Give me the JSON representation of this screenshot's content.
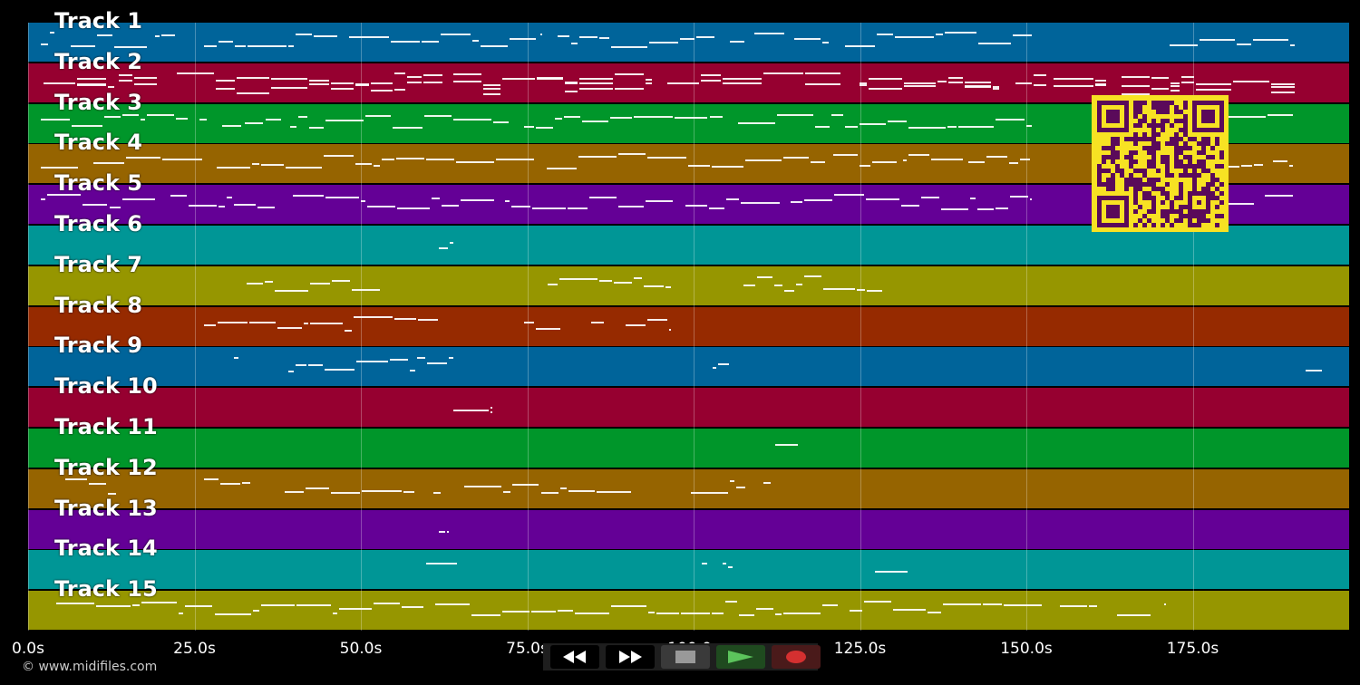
{
  "tracks": [
    {
      "label": "Track 1",
      "color": "#00649a"
    },
    {
      "label": "Track 2",
      "color": "#960030"
    },
    {
      "label": "Track 3",
      "color": "#00962a"
    },
    {
      "label": "Track 4",
      "color": "#966400"
    },
    {
      "label": "Track 5",
      "color": "#640096"
    },
    {
      "label": "Track 6",
      "color": "#009696"
    },
    {
      "label": "Track 7",
      "color": "#969600"
    },
    {
      "label": "Track 8",
      "color": "#962a00"
    },
    {
      "label": "Track 9",
      "color": "#00649a"
    },
    {
      "label": "Track 10",
      "color": "#960030"
    },
    {
      "label": "Track 11",
      "color": "#00962a"
    },
    {
      "label": "Track 12",
      "color": "#966400"
    },
    {
      "label": "Track 13",
      "color": "#640096"
    },
    {
      "label": "Track 14",
      "color": "#009696"
    },
    {
      "label": "Track 15",
      "color": "#969600"
    }
  ],
  "timeline": {
    "start_seconds": 0,
    "end_seconds": 198.5,
    "ticks": [
      {
        "seconds": 0,
        "label": "0.0s"
      },
      {
        "seconds": 25,
        "label": "25.0s"
      },
      {
        "seconds": 50,
        "label": "50.0s"
      },
      {
        "seconds": 75,
        "label": "75.0s"
      },
      {
        "seconds": 100,
        "label": "100.0s"
      },
      {
        "seconds": 125,
        "label": "125.0s"
      },
      {
        "seconds": 150,
        "label": "150.0s"
      },
      {
        "seconds": 175,
        "label": "175.0s"
      }
    ]
  },
  "transport": {
    "buttons": [
      {
        "name": "rewind-button",
        "icon": "rewind-icon"
      },
      {
        "name": "fast-forward-button",
        "icon": "fast-forward-icon"
      },
      {
        "name": "stop-button",
        "icon": "stop-icon"
      },
      {
        "name": "play-button",
        "icon": "play-icon"
      },
      {
        "name": "record-button",
        "icon": "record-icon"
      }
    ]
  },
  "copyright": "© www.midifiles.com",
  "qr_code": {
    "icon": "qr-code-icon",
    "foreground": "#5a0a5a",
    "background": "#f7e223"
  }
}
